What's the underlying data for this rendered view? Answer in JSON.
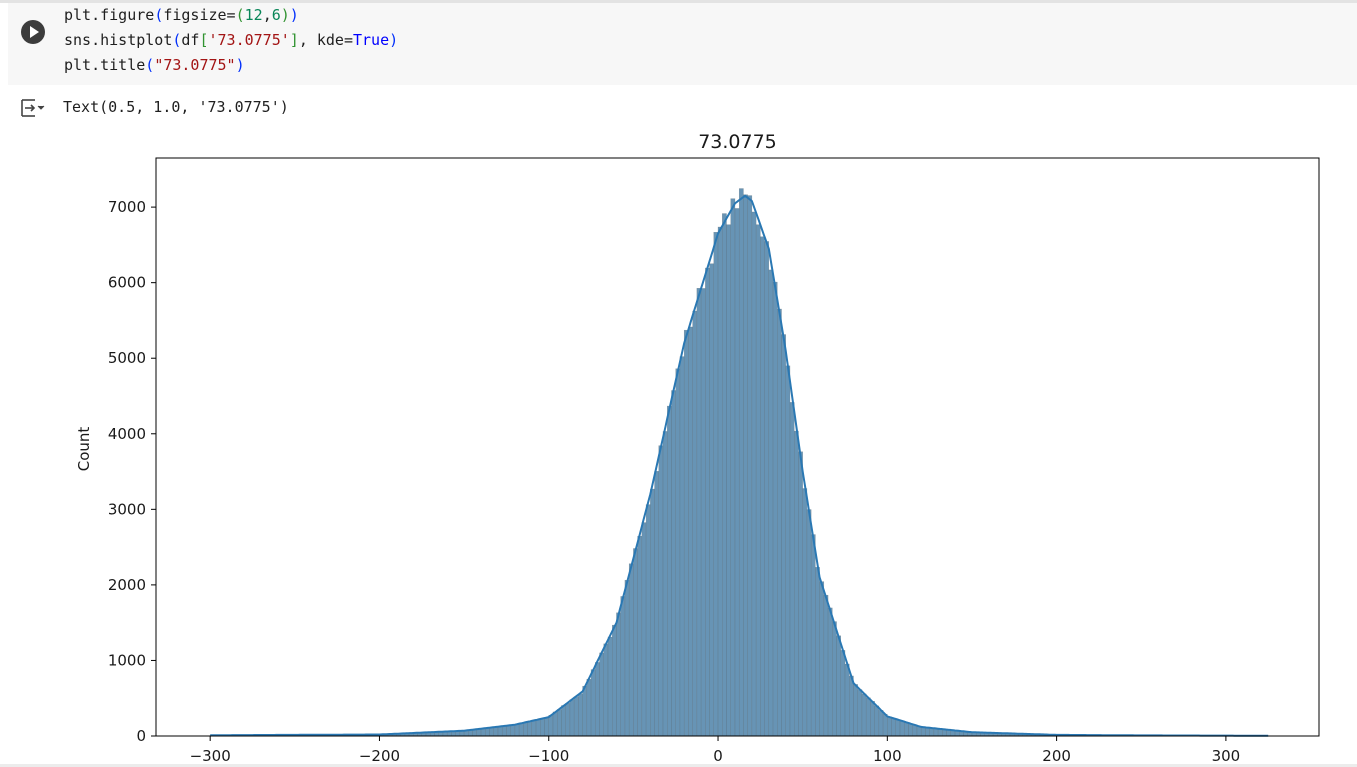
{
  "cell": {
    "code_lines": [
      "plt.figure(figsize=(12,6))",
      "sns.histplot(df['73.0775'], kde=True)",
      "plt.title(\"73.0775\")"
    ],
    "output_text": "Text(0.5, 1.0, '73.0775')"
  },
  "icons": {
    "run": "play-circle-icon",
    "output": "output-collapse-icon"
  },
  "colors": {
    "hist_fill": "#4c81a8",
    "kde_line": "#2a78b3",
    "axes": "#000000"
  },
  "chart_data": {
    "type": "histogram",
    "title": "73.0775",
    "xlabel": "",
    "ylabel": "Count",
    "xlim": [
      -332,
      355
    ],
    "ylim": [
      0,
      7650
    ],
    "xticks": [
      -300,
      -200,
      -100,
      0,
      100,
      200,
      300
    ],
    "xtick_labels": [
      "−300",
      "−200",
      "−100",
      "0",
      "100",
      "200",
      "300"
    ],
    "yticks": [
      0,
      1000,
      2000,
      3000,
      4000,
      5000,
      6000,
      7000
    ],
    "grid": false,
    "bin_range": [
      -300,
      325
    ],
    "peak": {
      "x": 16,
      "count": 7150
    },
    "spread_left": 32,
    "spread_right": 27,
    "kde": true,
    "x_samples": [
      -300,
      -200,
      -150,
      -120,
      -100,
      -80,
      -60,
      -40,
      -20,
      0,
      10,
      16,
      20,
      30,
      40,
      50,
      60,
      80,
      100,
      120,
      150,
      200,
      250,
      300,
      325
    ],
    "count_samples": [
      10,
      20,
      70,
      150,
      250,
      590,
      1500,
      3200,
      5200,
      6650,
      7050,
      7150,
      7080,
      6450,
      5100,
      3500,
      2100,
      700,
      260,
      120,
      50,
      15,
      8,
      5,
      3
    ]
  }
}
